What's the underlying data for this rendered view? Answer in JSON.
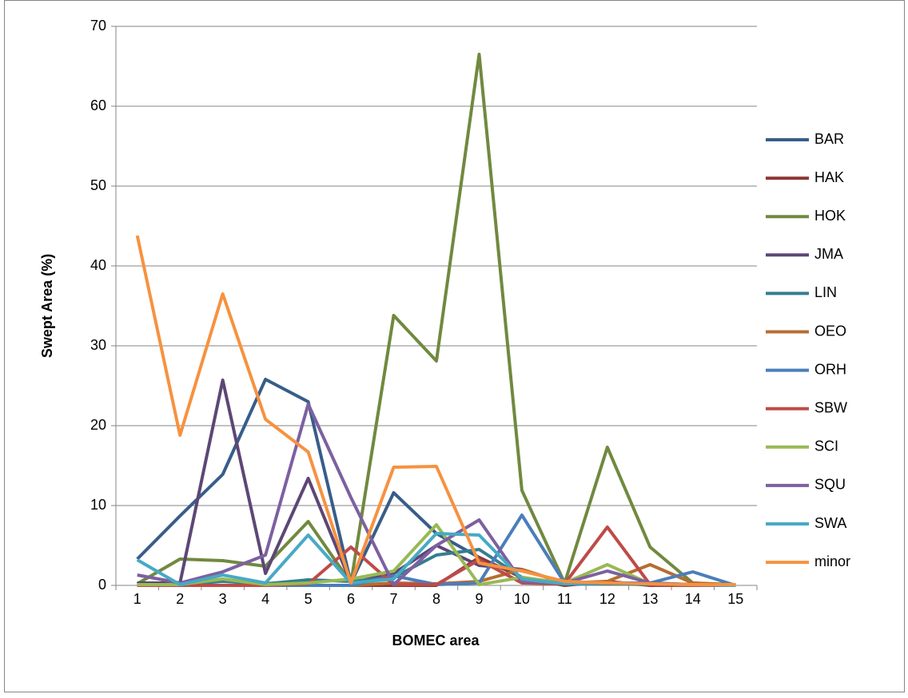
{
  "chart_data": {
    "type": "line",
    "x_label": "BOMEC area",
    "y_label": "Swept Area (%)",
    "categories": [
      "1",
      "2",
      "3",
      "4",
      "5",
      "6",
      "7",
      "8",
      "9",
      "10",
      "11",
      "12",
      "13",
      "14",
      "15"
    ],
    "ylim": [
      0,
      70
    ],
    "yticks": [
      0,
      10,
      20,
      30,
      40,
      50,
      60,
      70
    ],
    "grid": true,
    "legend": "right",
    "series": [
      {
        "name": "BAR",
        "color": "#385d8a",
        "values": [
          3.3,
          8.7,
          13.9,
          25.8,
          23.0,
          0.3,
          11.6,
          6.5,
          3.5,
          1.0,
          0.2,
          0.3,
          0.2,
          0.1,
          0.1
        ]
      },
      {
        "name": "HAK",
        "color": "#8c3836",
        "values": [
          0,
          0,
          0,
          0,
          0,
          0,
          0,
          0,
          3.5,
          1.0,
          0,
          0.5,
          0,
          0,
          0
        ]
      },
      {
        "name": "HOK",
        "color": "#71893f",
        "values": [
          0.2,
          3.3,
          3.1,
          2.4,
          8.0,
          0.3,
          33.8,
          28.1,
          66.5,
          11.9,
          0.3,
          17.3,
          4.8,
          0.3,
          0.1
        ]
      },
      {
        "name": "JMA",
        "color": "#5c4776",
        "values": [
          0.3,
          0.3,
          25.7,
          1.5,
          13.4,
          0.3,
          1.5,
          5.0,
          2.5,
          2.0,
          0.3,
          0.3,
          0.3,
          0.1,
          0.1
        ]
      },
      {
        "name": "LIN",
        "color": "#357d91",
        "values": [
          0.1,
          0.1,
          0.5,
          0.2,
          0.7,
          0.5,
          1.0,
          3.8,
          4.5,
          1.0,
          0.2,
          0.2,
          0.1,
          0,
          0
        ]
      },
      {
        "name": "OEO",
        "color": "#b66d31",
        "values": [
          0,
          0,
          0,
          0,
          0,
          0,
          0.3,
          0.2,
          0.5,
          2.0,
          0.3,
          0.5,
          2.6,
          0.3,
          0
        ]
      },
      {
        "name": "ORH",
        "color": "#4a7ebb",
        "values": [
          0,
          0,
          0,
          0,
          0,
          0,
          1.2,
          0.1,
          0.3,
          8.8,
          0.3,
          0.3,
          0.3,
          1.7,
          0
        ]
      },
      {
        "name": "SBW",
        "color": "#be4b48",
        "values": [
          0,
          0,
          0,
          0,
          0.2,
          4.8,
          0.1,
          0.1,
          3.2,
          0.3,
          0.2,
          7.3,
          0.1,
          0,
          0
        ]
      },
      {
        "name": "SCI",
        "color": "#98b954",
        "values": [
          0.1,
          0.1,
          0.8,
          0.1,
          0.3,
          0.8,
          1.8,
          7.6,
          0.1,
          1.0,
          0.3,
          2.6,
          0.2,
          0.1,
          0
        ]
      },
      {
        "name": "SQU",
        "color": "#7d60a0",
        "values": [
          1.3,
          0.3,
          1.7,
          3.8,
          22.7,
          11.0,
          0.1,
          5.0,
          8.2,
          0.5,
          0.3,
          1.8,
          0.3,
          0.1,
          0
        ]
      },
      {
        "name": "SWA",
        "color": "#46aac5",
        "values": [
          3.2,
          0.1,
          1.3,
          0.3,
          6.3,
          0.3,
          0.8,
          6.5,
          6.3,
          0.8,
          0.2,
          0.3,
          0.2,
          0.1,
          0
        ]
      },
      {
        "name": "minor",
        "color": "#f69240",
        "values": [
          43.8,
          18.8,
          36.5,
          20.8,
          16.7,
          0.3,
          14.8,
          14.9,
          2.8,
          1.8,
          0.5,
          0.3,
          0.2,
          0.1,
          0.1
        ]
      }
    ]
  }
}
